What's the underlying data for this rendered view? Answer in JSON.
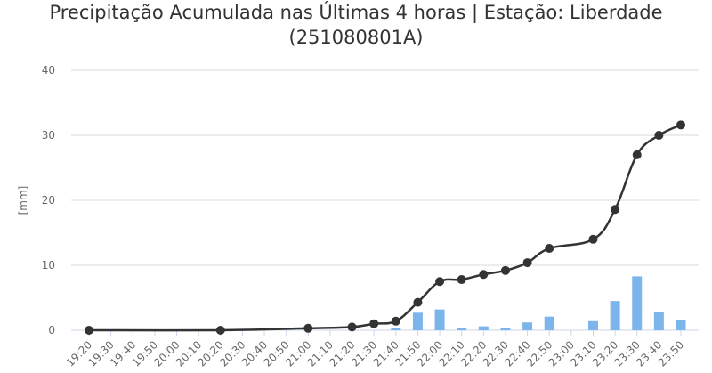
{
  "chart_data": {
    "type": "combo",
    "title": "Precipitação Acumulada nas Últimas 4 horas | Estação: Liberdade (251080801A)",
    "y_label": "[mm]",
    "categories": [
      "19:20",
      "19:30",
      "19:40",
      "19:50",
      "20:00",
      "20:10",
      "20:20",
      "20:30",
      "20:40",
      "20:50",
      "21:00",
      "21:10",
      "21:20",
      "21:30",
      "21:40",
      "21:50",
      "22:00",
      "22:10",
      "22:20",
      "22:30",
      "22:40",
      "22:50",
      "23:00",
      "23:10",
      "23:20",
      "23:30",
      "23:40",
      "23:50"
    ],
    "series": [
      {
        "type": "bar",
        "color": "#7cb5ec",
        "values": [
          0,
          0,
          0,
          0,
          0,
          0,
          0,
          0,
          0,
          0,
          0,
          0,
          0,
          0,
          0.4,
          2.7,
          3.2,
          0.3,
          0.6,
          0.4,
          1.2,
          2.1,
          0,
          1.4,
          4.5,
          8.3,
          2.8,
          1.6
        ]
      },
      {
        "type": "line",
        "color": "#333333",
        "x": [
          "19:20",
          "20:20",
          "21:00",
          "21:20",
          "21:30",
          "21:40",
          "21:50",
          "22:00",
          "22:10",
          "22:20",
          "22:30",
          "22:40",
          "22:50",
          "23:10",
          "23:20",
          "23:30",
          "23:40",
          "23:50"
        ],
        "values": [
          0,
          0,
          0.3,
          0.5,
          1.0,
          1.4,
          4.3,
          7.5,
          7.8,
          8.6,
          9.2,
          10.4,
          12.6,
          14.0,
          18.6,
          27.0,
          30.0,
          31.6
        ]
      }
    ],
    "ylim": [
      0,
      40
    ],
    "yticks": [
      0,
      10,
      20,
      30,
      40
    ],
    "grid": true
  }
}
